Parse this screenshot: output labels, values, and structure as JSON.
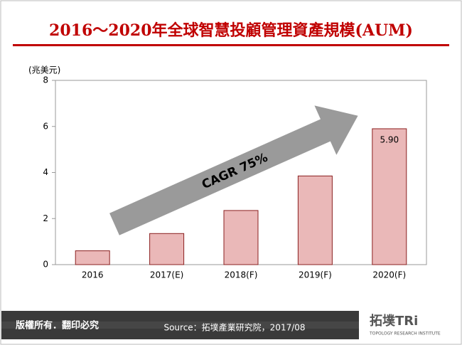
{
  "chart_data": {
    "type": "bar",
    "title": "2016～2020年全球智慧投顧管理資產規模(AUM)",
    "y_axis_label": "(兆美元)",
    "categories": [
      "2016",
      "2017(E)",
      "2018(F)",
      "2019(F)",
      "2020(F)"
    ],
    "values": [
      0.6,
      1.35,
      2.35,
      3.85,
      5.9
    ],
    "value_labels": [
      null,
      null,
      null,
      null,
      "5.90"
    ],
    "color": "#eab8b8",
    "ylim": [
      0,
      8
    ],
    "yticks": [
      0,
      2,
      4,
      6,
      8
    ],
    "annotation": "CAGR 75%",
    "footer": {
      "copyright": "版權所有．翻印必究",
      "source": "Source：拓墣產業研究院，2017/08",
      "logo": "拓墣TRi",
      "logo_sub": "TOPOLOGY RESEARCH INSTITUTE"
    }
  }
}
